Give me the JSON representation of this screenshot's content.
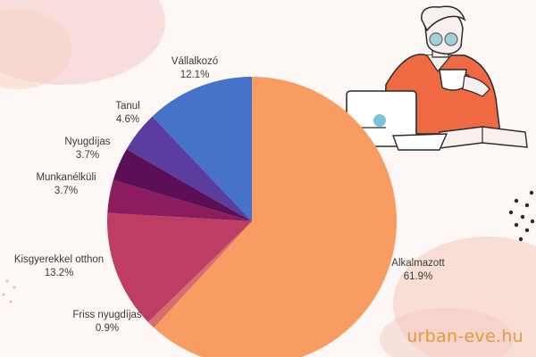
{
  "brand": "urban-eve.hu",
  "colors": {
    "background": "#fdf7f6",
    "brand": "#e39a3c",
    "label_text": "#3a3a3a",
    "blob_pink": "#f3c9c4",
    "blob_peach": "#f6d6c8",
    "shirt": "#ef6a42",
    "laptop_dot": "#7ec2d6"
  },
  "illustration": {
    "name": "man-drinking-coffee-with-laptop-and-book"
  },
  "chart_data": {
    "type": "pie",
    "title": "",
    "unit": "%",
    "start_angle_deg": 0,
    "direction": "clockwise",
    "slices": [
      {
        "label": "Alkalmazott",
        "pct_text": "61.9%",
        "value": 61.9,
        "color": "#f79d63"
      },
      {
        "label": "Friss nyugdíjas",
        "pct_text": "0.9%",
        "value": 0.9,
        "color": "#d96c6c"
      },
      {
        "label": "Kisgyerekkel otthon",
        "pct_text": "13.2%",
        "value": 13.2,
        "color": "#bd3d64"
      },
      {
        "label": "Munkanélküli",
        "pct_text": "3.7%",
        "value": 3.7,
        "color": "#8b1c5e"
      },
      {
        "label": "Nyugdíjas",
        "pct_text": "3.7%",
        "value": 3.7,
        "color": "#5a0f57"
      },
      {
        "label": "Tanul",
        "pct_text": "4.6%",
        "value": 4.6,
        "color": "#5a3d9e"
      },
      {
        "label": "Vállalkozó",
        "pct_text": "12.1%",
        "value": 12.1,
        "color": "#4672c7"
      }
    ]
  }
}
